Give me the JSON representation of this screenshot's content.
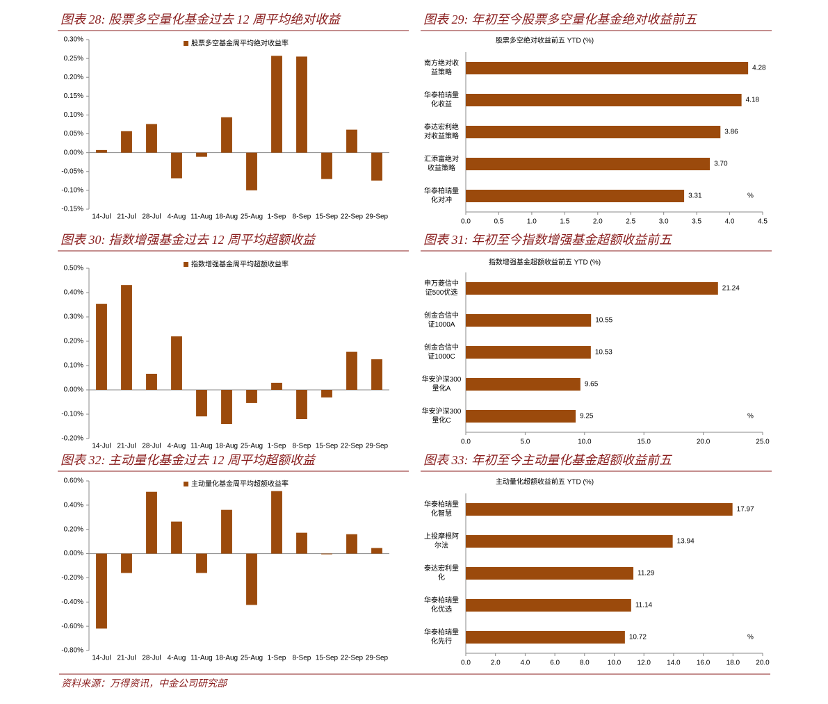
{
  "chart_data": [
    {
      "type": "bar",
      "title": "图表 28: 股票多空量化基金过去 12 周平均绝对收益",
      "categories": [
        "14-Jul",
        "21-Jul",
        "28-Jul",
        "4-Aug",
        "11-Aug",
        "18-Aug",
        "25-Aug",
        "1-Sep",
        "8-Sep",
        "15-Sep",
        "22-Sep",
        "29-Sep"
      ],
      "series": [
        {
          "name": "股票多空基金周平均绝对收益率",
          "color": "#9b4a0c",
          "values": [
            0.007,
            0.057,
            0.076,
            -0.068,
            -0.011,
            0.094,
            -0.1,
            0.257,
            0.255,
            -0.07,
            0.061,
            -0.074
          ]
        }
      ],
      "ylim": [
        -0.15,
        0.3
      ],
      "yticks": [
        {
          "value": -0.15,
          "label": "-0.15%"
        },
        {
          "value": -0.1,
          "label": "-0.10%"
        },
        {
          "value": -0.05,
          "label": "-0.05%"
        },
        {
          "value": 0,
          "label": "0.00%"
        },
        {
          "value": 0.05,
          "label": "0.05%"
        },
        {
          "value": 0.1,
          "label": "0.10%"
        },
        {
          "value": 0.15,
          "label": "0.15%"
        },
        {
          "value": 0.2,
          "label": "0.20%"
        },
        {
          "value": 0.25,
          "label": "0.25%"
        },
        {
          "value": 0.3,
          "label": "0.30%"
        }
      ]
    },
    {
      "type": "barh",
      "title": "图表 29: 年初至今股票多空量化基金绝对收益前五",
      "subtitle": "股票多空绝对收益前五 YTD (%)",
      "annotation": "%",
      "categories": [
        "南方绝对收益策略",
        "华泰柏瑞量化收益",
        "泰达宏利绝对收益策略",
        "汇添富绝对收益策略",
        "华泰柏瑞量化对冲"
      ],
      "values": [
        4.28,
        4.18,
        3.86,
        3.7,
        3.31
      ],
      "value_labels": [
        "4.28",
        "4.18",
        "3.86",
        "3.70",
        "3.31"
      ],
      "color": "#9b4a0c",
      "xlim": [
        0,
        4.5
      ],
      "xticks": [
        {
          "value": 0,
          "label": "0.0"
        },
        0.5,
        {
          "value": 1,
          "label": "1.0"
        },
        1.5,
        {
          "value": 2,
          "label": "2.0"
        },
        2.5,
        {
          "value": 3,
          "label": "3.0"
        },
        3.5,
        {
          "value": 4,
          "label": "4.0"
        },
        4.5
      ]
    },
    {
      "type": "bar",
      "title": "图表 30: 指数增强基金过去 12 周平均超额收益",
      "categories": [
        "14-Jul",
        "21-Jul",
        "28-Jul",
        "4-Aug",
        "11-Aug",
        "18-Aug",
        "25-Aug",
        "1-Sep",
        "8-Sep",
        "15-Sep",
        "22-Sep",
        "29-Sep"
      ],
      "series": [
        {
          "name": "指数增强基金周平均超额收益率",
          "color": "#9b4a0c",
          "values": [
            0.354,
            0.431,
            0.066,
            0.22,
            -0.109,
            -0.14,
            -0.054,
            0.029,
            -0.12,
            -0.031,
            0.157,
            0.126
          ]
        }
      ],
      "ylim": [
        -0.2,
        0.5
      ],
      "yticks": [
        {
          "value": -0.2,
          "label": "-0.20%"
        },
        {
          "value": -0.1,
          "label": "-0.10%"
        },
        {
          "value": 0,
          "label": "0.00%"
        },
        {
          "value": 0.1,
          "label": "0.10%"
        },
        {
          "value": 0.2,
          "label": "0.20%"
        },
        {
          "value": 0.3,
          "label": "0.30%"
        },
        {
          "value": 0.4,
          "label": "0.40%"
        },
        {
          "value": 0.5,
          "label": "0.50%"
        }
      ]
    },
    {
      "type": "barh",
      "title": "图表 31: 年初至今指数增强基金超额收益前五",
      "subtitle": "指数增强基金超额收益前五 YTD (%)",
      "annotation": "%",
      "categories": [
        "申万菱信中证500优选",
        "创金合信中证1000A",
        "创金合信中证1000C",
        "华安沪深300量化A",
        "华安沪深300量化C"
      ],
      "values": [
        21.24,
        10.55,
        10.53,
        9.65,
        9.25
      ],
      "value_labels": [
        "21.24",
        "10.55",
        "10.53",
        "9.65",
        "9.25"
      ],
      "color": "#9b4a0c",
      "xlim": [
        0,
        25
      ],
      "xticks": [
        {
          "value": 0,
          "label": "0.0"
        },
        {
          "value": 5,
          "label": "5.0"
        },
        {
          "value": 10,
          "label": "10.0"
        },
        {
          "value": 15,
          "label": "15.0"
        },
        {
          "value": 20,
          "label": "20.0"
        },
        {
          "value": 25,
          "label": "25.0"
        }
      ]
    },
    {
      "type": "bar",
      "title": "图表 32: 主动量化基金过去 12 周平均超额收益",
      "categories": [
        "14-Jul",
        "21-Jul",
        "28-Jul",
        "4-Aug",
        "11-Aug",
        "18-Aug",
        "25-Aug",
        "1-Sep",
        "8-Sep",
        "15-Sep",
        "22-Sep",
        "29-Sep"
      ],
      "series": [
        {
          "name": "主动量化基金周平均超额收益率",
          "color": "#9b4a0c",
          "values": [
            -0.619,
            -0.16,
            0.51,
            0.264,
            -0.16,
            0.361,
            -0.424,
            0.516,
            0.172,
            -0.006,
            0.16,
            0.046
          ]
        }
      ],
      "ylim": [
        -0.8,
        0.6
      ],
      "yticks": [
        {
          "value": -0.8,
          "label": "-0.80%"
        },
        {
          "value": -0.6,
          "label": "-0.60%"
        },
        {
          "value": -0.4,
          "label": "-0.40%"
        },
        {
          "value": -0.2,
          "label": "-0.20%"
        },
        {
          "value": 0,
          "label": "0.00%"
        },
        {
          "value": 0.2,
          "label": "0.20%"
        },
        {
          "value": 0.4,
          "label": "0.40%"
        },
        {
          "value": 0.6,
          "label": "0.60%"
        }
      ]
    },
    {
      "type": "barh",
      "title": "图表 33: 年初至今主动量化基金超额收益前五",
      "subtitle": "主动量化超额收益前五 YTD (%)",
      "annotation": "%",
      "categories": [
        "华泰柏瑞量化智慧",
        "上投摩根阿尔法",
        "泰达宏利量化",
        "华泰柏瑞量化优选",
        "华泰柏瑞量化先行"
      ],
      "values": [
        17.97,
        13.94,
        11.29,
        11.14,
        10.72
      ],
      "value_labels": [
        "17.97",
        "13.94",
        "11.29",
        "11.14",
        "10.72"
      ],
      "color": "#9b4a0c",
      "xlim": [
        0,
        20
      ],
      "xticks": [
        {
          "value": 0,
          "label": "0.0"
        },
        {
          "value": 2,
          "label": "2.0"
        },
        {
          "value": 4,
          "label": "4.0"
        },
        {
          "value": 6,
          "label": "6.0"
        },
        {
          "value": 8,
          "label": "8.0"
        },
        {
          "value": 10,
          "label": "10.0"
        },
        {
          "value": 12,
          "label": "12.0"
        },
        {
          "value": 14,
          "label": "14.0"
        },
        {
          "value": 16,
          "label": "16.0"
        },
        {
          "value": 18,
          "label": "18.0"
        },
        {
          "value": 20,
          "label": "20.0"
        }
      ]
    }
  ],
  "source": "资料来源：万得资讯，中金公司研究部"
}
